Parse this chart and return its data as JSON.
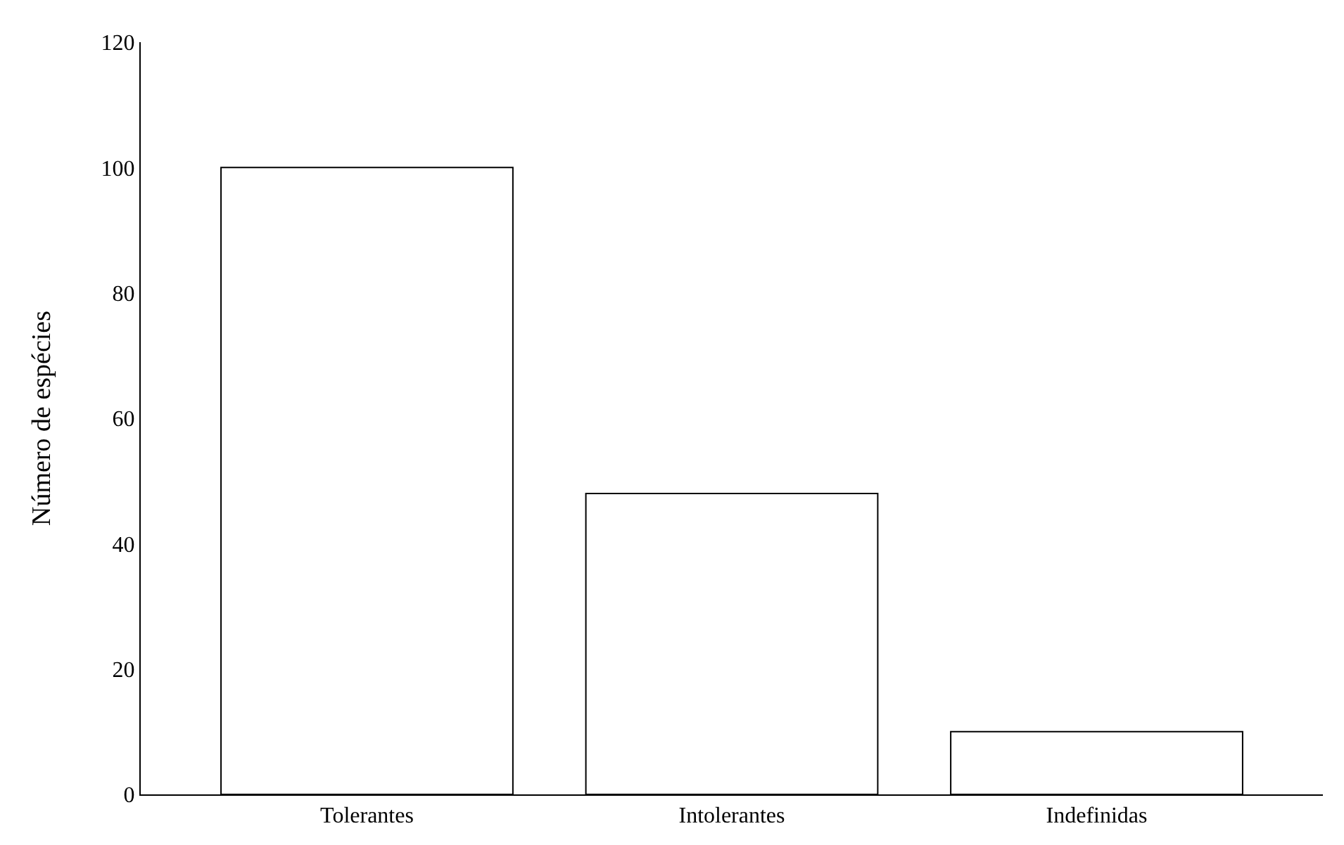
{
  "chart_data": {
    "type": "bar",
    "ylabel": "Número de espécies",
    "categories": [
      "Tolerantes",
      "Intolerantes",
      "Indefinidas"
    ],
    "values": [
      100,
      48,
      10
    ],
    "color": "#ffffff",
    "ylim": [
      0,
      120
    ],
    "yticks": [
      0,
      20,
      40,
      60,
      80,
      100,
      120
    ]
  }
}
